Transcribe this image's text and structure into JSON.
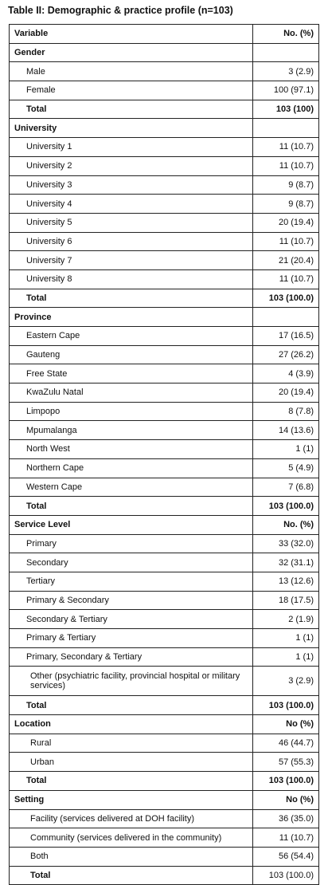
{
  "title": "Table II: Demographic & practice profile (n=103)",
  "rows": [
    {
      "label": "Variable",
      "value": "No. (%)",
      "type": "header"
    },
    {
      "label": "Gender",
      "value": "",
      "type": "section"
    },
    {
      "label": "Male",
      "value": "3 (2.9)",
      "type": "item"
    },
    {
      "label": "Female",
      "value": "100 (97.1)",
      "type": "item"
    },
    {
      "label": "Total",
      "value": "103 (100)",
      "type": "total"
    },
    {
      "label": "University",
      "value": "",
      "type": "section"
    },
    {
      "label": "University 1",
      "value": "11 (10.7)",
      "type": "item"
    },
    {
      "label": "University 2",
      "value": "11 (10.7)",
      "type": "item"
    },
    {
      "label": "University 3",
      "value": "9 (8.7)",
      "type": "item"
    },
    {
      "label": "University 4",
      "value": "9 (8.7)",
      "type": "item"
    },
    {
      "label": "University 5",
      "value": "20 (19.4)",
      "type": "item"
    },
    {
      "label": "University 6",
      "value": "11 (10.7)",
      "type": "item"
    },
    {
      "label": "University 7",
      "value": "21 (20.4)",
      "type": "item"
    },
    {
      "label": "University 8",
      "value": "11 (10.7)",
      "type": "item"
    },
    {
      "label": "Total",
      "value": "103 (100.0)",
      "type": "total"
    },
    {
      "label": "Province",
      "value": "",
      "type": "section"
    },
    {
      "label": "Eastern Cape",
      "value": "17 (16.5)",
      "type": "item"
    },
    {
      "label": "Gauteng",
      "value": "27 (26.2)",
      "type": "item"
    },
    {
      "label": "Free State",
      "value": "4 (3.9)",
      "type": "item"
    },
    {
      "label": "KwaZulu Natal",
      "value": "20 (19.4)",
      "type": "item"
    },
    {
      "label": "Limpopo",
      "value": "8 (7.8)",
      "type": "item"
    },
    {
      "label": "Mpumalanga",
      "value": "14 (13.6)",
      "type": "item"
    },
    {
      "label": "North West",
      "value": "1 (1)",
      "type": "item"
    },
    {
      "label": "Northern Cape",
      "value": "5 (4.9)",
      "type": "item"
    },
    {
      "label": "Western Cape",
      "value": "7 (6.8)",
      "type": "item"
    },
    {
      "label": "Total",
      "value": "103 (100.0)",
      "type": "total"
    },
    {
      "label": "Service Level",
      "value": "No. (%)",
      "type": "section"
    },
    {
      "label": "Primary",
      "value": "33 (32.0)",
      "type": "item"
    },
    {
      "label": "Secondary",
      "value": "32 (31.1)",
      "type": "item"
    },
    {
      "label": "Tertiary",
      "value": "13 (12.6)",
      "type": "item"
    },
    {
      "label": "Primary & Secondary",
      "value": "18 (17.5)",
      "type": "item"
    },
    {
      "label": "Secondary & Tertiary",
      "value": "2 (1.9)",
      "type": "item"
    },
    {
      "label": "Primary & Tertiary",
      "value": "1 (1)",
      "type": "item"
    },
    {
      "label": "Primary, Secondary & Tertiary",
      "value": "1 (1)",
      "type": "item"
    },
    {
      "label": "Other (psychiatric facility, provincial hospital or military services)",
      "value": "3 (2.9)",
      "type": "item2"
    },
    {
      "label": "Total",
      "value": "103 (100.0)",
      "type": "total"
    },
    {
      "label": "Location",
      "value": "No (%)",
      "type": "section"
    },
    {
      "label": "Rural",
      "value": "46 (44.7)",
      "type": "item2"
    },
    {
      "label": "Urban",
      "value": "57 (55.3)",
      "type": "item2"
    },
    {
      "label": "Total",
      "value": "103 (100.0)",
      "type": "total"
    },
    {
      "label": "Setting",
      "value": "No (%)",
      "type": "section"
    },
    {
      "label": "Facility (services delivered at DOH facility)",
      "value": "36 (35.0)",
      "type": "item2"
    },
    {
      "label": "Community (services delivered in the community)",
      "value": "11 (10.7)",
      "type": "item2"
    },
    {
      "label": "Both",
      "value": "56 (54.4)",
      "type": "item2"
    },
    {
      "label": "Total",
      "value": "103 (100.0)",
      "type": "total2"
    }
  ]
}
